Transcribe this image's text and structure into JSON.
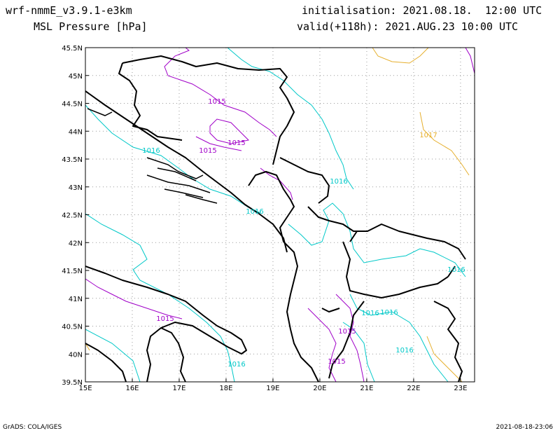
{
  "header": {
    "model": "wrf-nmmE_v3.9.1-e3km",
    "field": "MSL Pressure [hPa]",
    "init": "initialisation: 2021.08.18.  12:00 UTC",
    "valid": "valid(+118h): 2021.AUG.23 10:00 UTC"
  },
  "footer": {
    "credit": "GrADS: COLA/IGES",
    "timestamp": "2021-08-18-23:06"
  },
  "map": {
    "lon_ticks": [
      "15E",
      "16E",
      "17E",
      "18E",
      "19E",
      "20E",
      "21E",
      "22E",
      "23E"
    ],
    "lat_ticks": [
      "45.5N",
      "45N",
      "44.5N",
      "44N",
      "43.5N",
      "43N",
      "42.5N",
      "42N",
      "41.5N",
      "41N",
      "40.5N",
      "40N",
      "39.5N"
    ],
    "grid": true,
    "colors": {
      "coast": "#000000",
      "c1015": "#a000c8",
      "c1016": "#00c8c8",
      "c1017": "#e6af2d"
    },
    "contour_labels": [
      {
        "text": "1015",
        "level": "1015"
      },
      {
        "text": "1015",
        "level": "1015"
      },
      {
        "text": "1015",
        "level": "1015"
      },
      {
        "text": "1016",
        "level": "1016"
      },
      {
        "text": "1016",
        "level": "1016"
      },
      {
        "text": "1016",
        "level": "1016"
      },
      {
        "text": "1016",
        "level": "1016"
      },
      {
        "text": "1016",
        "level": "1016"
      },
      {
        "text": "1017",
        "level": "1017"
      },
      {
        "text": "1015",
        "level": "1015"
      },
      {
        "text": "1015",
        "level": "1015"
      },
      {
        "text": "1015",
        "level": "1015"
      },
      {
        "text": "1016",
        "level": "1016"
      },
      {
        "text": "1016",
        "level": "1016"
      },
      {
        "text": "1016",
        "level": "1016"
      }
    ]
  }
}
